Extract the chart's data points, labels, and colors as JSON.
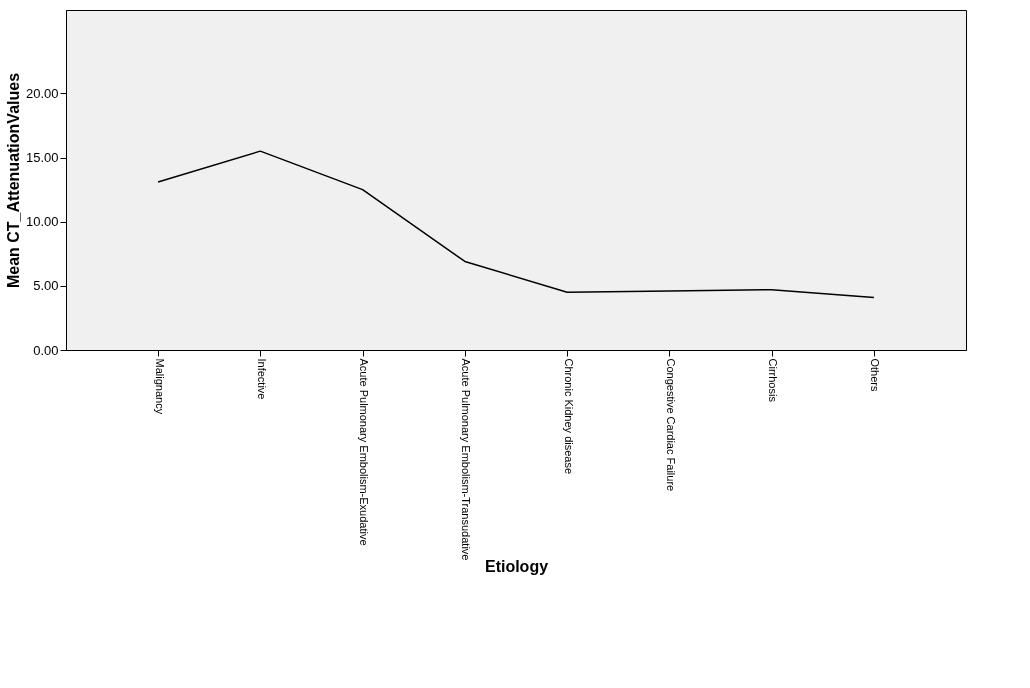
{
  "chart_data": {
    "type": "line",
    "xlabel": "Etiology",
    "ylabel": "Mean CT_AttenuationValues",
    "categories": [
      "Malignancy",
      "Infective",
      "Acute Pulmonary Embolism-Exudative",
      "Acute Pulmonary Embolism-Transudative",
      "Chronic Kidney disease",
      "Congestive Cardiac Failure",
      "Cirrhosis",
      "Others"
    ],
    "series": [
      {
        "color": "#000000",
        "values": [
          13.1,
          15.5,
          12.5,
          6.9,
          4.5,
          4.6,
          4.7,
          4.1
        ]
      }
    ],
    "ylim": [
      0,
      26.5
    ],
    "yticks": [
      {
        "value": 0,
        "label": "0.00"
      },
      {
        "value": 5,
        "label": "5.00"
      },
      {
        "value": 10,
        "label": "10.00"
      },
      {
        "value": 15,
        "label": "15.00"
      },
      {
        "value": 20,
        "label": "20.00"
      }
    ],
    "grid": false,
    "marker": "none",
    "line_style": "solid"
  }
}
